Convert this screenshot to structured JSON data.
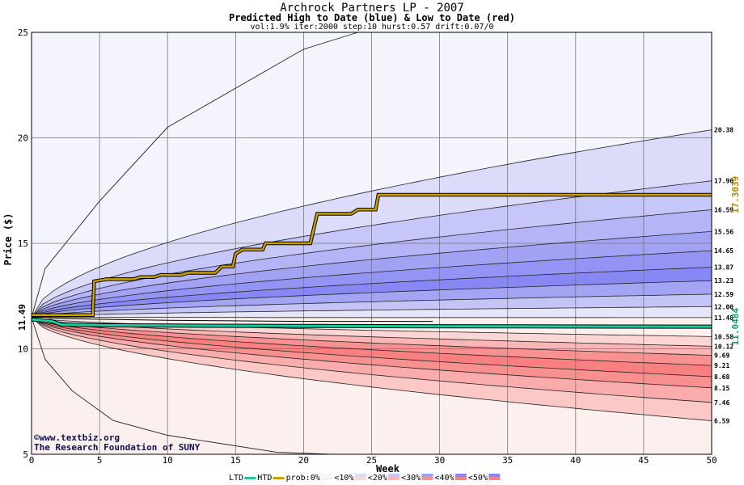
{
  "title": "Archrock Partners LP - 2007",
  "subtitle": "Predicted High to Date (blue) &  Low to Date (red)",
  "params": "vol:1.9% iter:2000 step:10 hurst:0.57 drift:0.07/0",
  "watermark": {
    "line1": "©www.textbiz.org",
    "line2": "The Research Foundation of SUNY"
  },
  "legend": {
    "ltd": "LTD",
    "htd": "HTD",
    "prob": "prob:0%",
    "bins": [
      "<10%",
      "<20%",
      "<30%",
      "<40%",
      "<50%"
    ]
  },
  "chart_data": {
    "type": "area",
    "xlabel": "Week",
    "ylabel": "Price ($)",
    "xlim": [
      0,
      50
    ],
    "ylim": [
      5,
      25
    ],
    "xticks": [
      0,
      5,
      10,
      15,
      20,
      25,
      30,
      35,
      40,
      45,
      50
    ],
    "yticks": [
      5,
      10,
      15,
      20,
      25
    ],
    "grid": true,
    "start_price": 11.49,
    "start_price_label": "11.49",
    "upper_band_end_values": [
      20.38,
      17.96,
      16.59,
      15.56,
      14.65,
      13.87,
      13.23,
      12.59,
      12.0,
      11.48
    ],
    "upper_band_end_labels": [
      "20.38",
      "17.96",
      "16.59",
      "15.56",
      "14.65",
      "13.87",
      "13.23",
      "12.59",
      "12.00",
      "11.48"
    ],
    "lower_band_end_values": [
      10.58,
      10.12,
      9.69,
      9.21,
      8.68,
      8.15,
      7.46,
      6.59
    ],
    "lower_band_end_labels": [
      "10.58",
      "10.12",
      "9.69",
      "9.21",
      "8.68",
      "8.15",
      "7.46",
      "6.59"
    ],
    "outer_upper_curve": [
      [
        0,
        11.49
      ],
      [
        1,
        13.8
      ],
      [
        5,
        17.0
      ],
      [
        10,
        20.5
      ],
      [
        20,
        24.2
      ],
      [
        24,
        25.0
      ]
    ],
    "outer_lower_curve": [
      [
        0,
        11.49
      ],
      [
        1,
        9.5
      ],
      [
        3,
        8.0
      ],
      [
        6,
        6.6
      ],
      [
        10,
        5.9
      ],
      [
        18,
        5.1
      ],
      [
        22,
        5.0
      ]
    ],
    "htd_series": {
      "name": "HTD",
      "color": "#c8a000",
      "end_label": "17.3039",
      "end_value": 17.3039,
      "points": [
        [
          0,
          11.6
        ],
        [
          4.5,
          11.6
        ],
        [
          4.6,
          13.2
        ],
        [
          5.5,
          13.3
        ],
        [
          7.5,
          13.3
        ],
        [
          8,
          13.4
        ],
        [
          9,
          13.4
        ],
        [
          9.5,
          13.5
        ],
        [
          11,
          13.5
        ],
        [
          11.5,
          13.6
        ],
        [
          13.5,
          13.6
        ],
        [
          14,
          13.9
        ],
        [
          14.8,
          13.9
        ],
        [
          15,
          14.5
        ],
        [
          15.5,
          14.7
        ],
        [
          17,
          14.7
        ],
        [
          17.2,
          15.0
        ],
        [
          20.5,
          15.0
        ],
        [
          21,
          16.4
        ],
        [
          23.5,
          16.4
        ],
        [
          24,
          16.6
        ],
        [
          25.3,
          16.6
        ],
        [
          25.5,
          17.3
        ],
        [
          50,
          17.3
        ]
      ]
    },
    "ltd_series": {
      "name": "LTD",
      "color": "#1ec8a0",
      "end_label": "11.0484",
      "end_value": 11.0484,
      "points": [
        [
          0,
          11.4
        ],
        [
          1.5,
          11.3
        ],
        [
          2.2,
          11.15
        ],
        [
          5,
          11.12
        ],
        [
          10,
          11.1
        ],
        [
          20,
          11.08
        ],
        [
          35,
          11.06
        ],
        [
          50,
          11.05
        ]
      ]
    },
    "htd_median_trace": [
      [
        0,
        11.5
      ],
      [
        1,
        11.5
      ],
      [
        1.5,
        11.45
      ],
      [
        5,
        11.4
      ],
      [
        10,
        11.35
      ],
      [
        20,
        11.3
      ],
      [
        29.5,
        11.3
      ]
    ]
  }
}
